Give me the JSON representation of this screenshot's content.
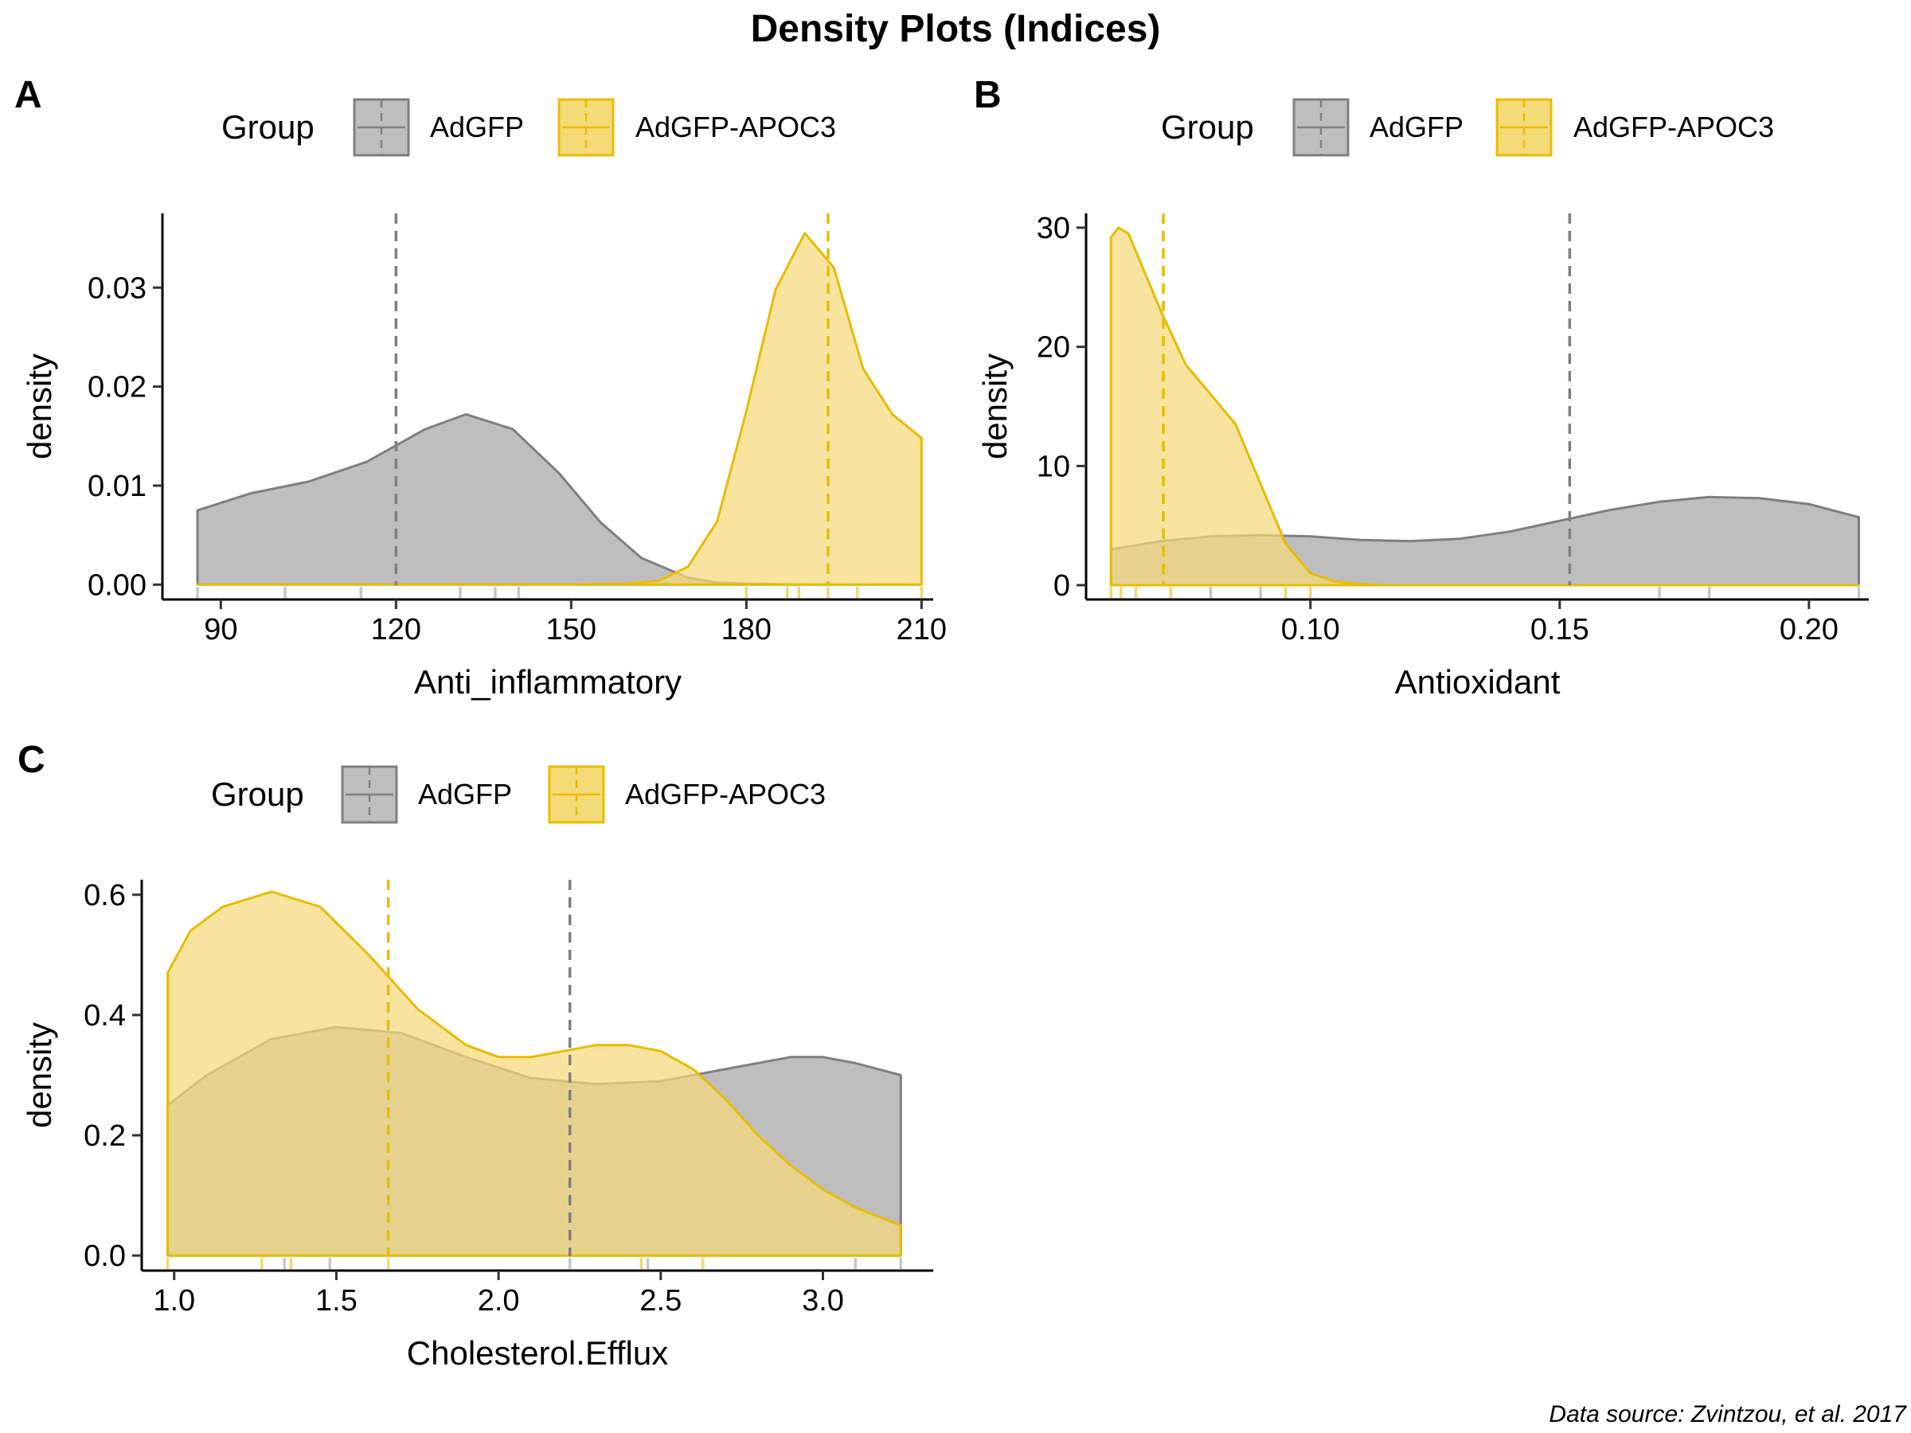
{
  "figure": {
    "title": "Density Plots (Indices)",
    "caption": "Data source: Zvintzou, et al. 2017",
    "legend_title": "Group",
    "groups": [
      {
        "name": "AdGFP",
        "fill": "#bebebe",
        "stroke": "#7f7f7f"
      },
      {
        "name": "AdGFP-APOC3",
        "fill": "#f5da78",
        "stroke": "#e8bc00"
      }
    ]
  },
  "chart_data": [
    {
      "panel": "A",
      "type": "area",
      "title": "",
      "xlabel": "Anti_inflammatory",
      "ylabel": "density",
      "xlim": [
        80,
        212
      ],
      "ylim": [
        -0.0015,
        0.0375
      ],
      "xticks": [
        90,
        120,
        150,
        180,
        210
      ],
      "xtick_labels": [
        "90",
        "120",
        "150",
        "180",
        "210"
      ],
      "yticks": [
        0,
        0.01,
        0.02,
        0.03
      ],
      "ytick_labels": [
        "0.00",
        "0.01",
        "0.02",
        "0.03"
      ],
      "series": [
        {
          "name": "AdGFP",
          "x": [
            86,
            95,
            105,
            115,
            125,
            132,
            140,
            148,
            155,
            162,
            170,
            175,
            180,
            190,
            200,
            210
          ],
          "y": [
            0.0075,
            0.0092,
            0.0104,
            0.0124,
            0.0157,
            0.0172,
            0.0157,
            0.0112,
            0.0063,
            0.0027,
            0.0007,
            0.0002,
            0.0001,
            0.0,
            0.0,
            0.0
          ],
          "mean": 120,
          "rug": [
            86,
            101,
            114,
            131,
            137,
            141
          ]
        },
        {
          "name": "AdGFP-APOC3",
          "x": [
            86,
            120,
            150,
            160,
            165,
            170,
            175,
            180,
            185,
            190,
            195,
            200,
            205,
            210
          ],
          "y": [
            0.0,
            0.0,
            0.0,
            0.0001,
            0.0004,
            0.0018,
            0.0064,
            0.0175,
            0.0298,
            0.0355,
            0.032,
            0.0218,
            0.0172,
            0.0148
          ],
          "mean": 194,
          "rug": [
            180,
            187,
            189,
            194,
            199,
            210
          ]
        }
      ]
    },
    {
      "panel": "B",
      "type": "area",
      "title": "",
      "xlabel": "Antioxidant",
      "ylabel": "density",
      "xlim": [
        0.055,
        0.212
      ],
      "ylim": [
        -1.2,
        31.2
      ],
      "xticks": [
        0.1,
        0.15,
        0.2
      ],
      "xtick_labels": [
        "0.10",
        "0.15",
        "0.20"
      ],
      "yticks": [
        0,
        10,
        20,
        30
      ],
      "ytick_labels": [
        "0",
        "10",
        "20",
        "30"
      ],
      "series": [
        {
          "name": "AdGFP",
          "x": [
            0.06,
            0.07,
            0.08,
            0.09,
            0.1,
            0.11,
            0.12,
            0.13,
            0.14,
            0.15,
            0.16,
            0.17,
            0.18,
            0.19,
            0.2,
            0.21
          ],
          "y": [
            3.0,
            3.7,
            4.1,
            4.2,
            4.1,
            3.8,
            3.7,
            3.9,
            4.5,
            5.4,
            6.3,
            7.0,
            7.4,
            7.3,
            6.8,
            5.7
          ],
          "mean": 0.152,
          "rug": [
            0.06,
            0.08,
            0.09,
            0.17,
            0.18,
            0.21
          ]
        },
        {
          "name": "AdGFP-APOC3",
          "x": [
            0.06,
            0.0615,
            0.0635,
            0.066,
            0.07,
            0.075,
            0.08,
            0.085,
            0.09,
            0.095,
            0.1,
            0.105,
            0.11,
            0.115,
            0.12,
            0.21
          ],
          "y": [
            29.2,
            30.0,
            29.5,
            27.0,
            23.0,
            18.5,
            16.0,
            13.5,
            8.5,
            3.5,
            1.0,
            0.3,
            0.1,
            0.0,
            0.0,
            0.0
          ],
          "mean": 0.0705,
          "rug": [
            0.06,
            0.062,
            0.065,
            0.072,
            0.095,
            0.1
          ]
        }
      ]
    },
    {
      "panel": "C",
      "type": "area",
      "title": "",
      "xlabel": "Cholesterol.Efflux",
      "ylabel": "density",
      "xlim": [
        0.9,
        3.34
      ],
      "ylim": [
        -0.025,
        0.625
      ],
      "xticks": [
        1.0,
        1.5,
        2.0,
        2.5,
        3.0
      ],
      "xtick_labels": [
        "1.0",
        "1.5",
        "2.0",
        "2.5",
        "3.0"
      ],
      "yticks": [
        0,
        0.2,
        0.4,
        0.6
      ],
      "ytick_labels": [
        "0.0",
        "0.2",
        "0.4",
        "0.6"
      ],
      "series": [
        {
          "name": "AdGFP",
          "x": [
            0.98,
            1.1,
            1.3,
            1.5,
            1.7,
            1.9,
            2.1,
            2.3,
            2.5,
            2.7,
            2.9,
            3.0,
            3.1,
            3.24
          ],
          "y": [
            0.25,
            0.3,
            0.36,
            0.38,
            0.37,
            0.33,
            0.295,
            0.285,
            0.29,
            0.31,
            0.33,
            0.33,
            0.32,
            0.3
          ],
          "mean": 2.22,
          "rug": [
            1.34,
            1.48,
            2.22,
            2.46,
            3.1,
            3.24
          ]
        },
        {
          "name": "AdGFP-APOC3",
          "x": [
            0.98,
            1.05,
            1.15,
            1.3,
            1.45,
            1.6,
            1.75,
            1.9,
            2.0,
            2.1,
            2.2,
            2.3,
            2.4,
            2.5,
            2.6,
            2.7,
            2.8,
            2.9,
            3.0,
            3.1,
            3.24
          ],
          "y": [
            0.47,
            0.54,
            0.58,
            0.605,
            0.58,
            0.5,
            0.41,
            0.35,
            0.33,
            0.33,
            0.34,
            0.35,
            0.35,
            0.34,
            0.31,
            0.26,
            0.2,
            0.15,
            0.11,
            0.08,
            0.05
          ],
          "mean": 1.66,
          "rug": [
            0.98,
            1.27,
            1.36,
            1.66,
            2.44,
            2.63
          ]
        }
      ]
    }
  ]
}
